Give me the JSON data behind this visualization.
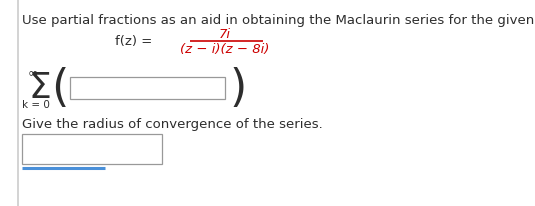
{
  "instruction_text": "Use partial fractions as an aid in obtaining the Maclaurin series for the given function.",
  "fz_label": "f(z) = ",
  "numerator": "7i",
  "denominator": "(z − i)(z − 8i)",
  "sigma_sup": "∞",
  "sigma_sub": "k = 0",
  "sigma_char": "Σ",
  "paren_open": "(",
  "paren_close": ")",
  "convergence_text": "Give the radius of convergence of the series.",
  "bg_color": "#ffffff",
  "text_color": "#2d2d2d",
  "red_color": "#cc0000",
  "font_size_instruction": 9.5,
  "font_size_fz": 9.5,
  "font_size_sigma": 26,
  "font_size_sub_sup": 7.5,
  "font_size_inf": 9,
  "font_size_paren": 32,
  "font_size_convergence": 9.5,
  "left_border_color": "#cccccc",
  "blue_color": "#4a90d9",
  "box_edge_color": "#999999"
}
